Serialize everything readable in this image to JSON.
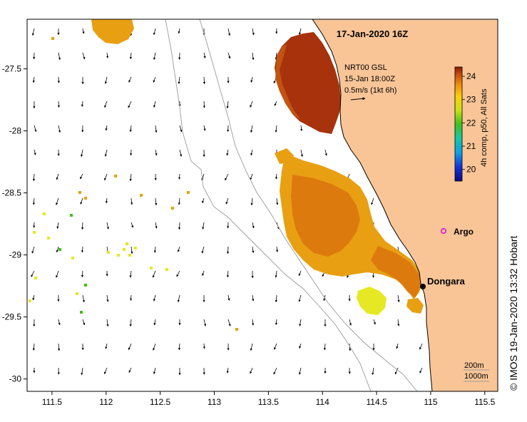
{
  "title": "17-Jan-2020 16Z",
  "current_vector_legend": {
    "line1": "NRT00 GSL",
    "line2": "15-Jan 18:00Z",
    "line3": "0.5m/s (1kt 6h)"
  },
  "colorbar": {
    "label": "4h comp, p50, All Sats",
    "ticks": [
      "24",
      "23",
      "22",
      "21",
      "20"
    ],
    "min": 19.5,
    "max": 24.4
  },
  "places": {
    "argo": "Argo",
    "dongara": "Dongara"
  },
  "depth_legend": {
    "line1": "200m",
    "line2": "1000m"
  },
  "credit": "© IMOS 19-Jan-2020 13:32 Hobart",
  "axes": {
    "x_ticks": [
      "111.5",
      "112",
      "112.5",
      "113",
      "113.5",
      "114",
      "114.5",
      "115",
      "115.5"
    ],
    "y_ticks": [
      "-27.5",
      "-28",
      "-28.5",
      "-29",
      "-29.5",
      "-30"
    ],
    "x_values": [
      111.5,
      112,
      112.5,
      113,
      113.5,
      114,
      114.5,
      115,
      115.5
    ],
    "y_values": [
      -27.5,
      -28,
      -28.5,
      -29,
      -29.5,
      -30
    ],
    "xlim": [
      111.27,
      115.62
    ],
    "ylim": [
      -30.1,
      -27.1
    ]
  },
  "colors": {
    "land": "#f9c597",
    "sst_warm": "#a7320c",
    "sst_mid": "#dd7a0e",
    "sst_cool": "#f5c20e",
    "sst_cold": "#e5e822",
    "argo": "#e024e0"
  }
}
